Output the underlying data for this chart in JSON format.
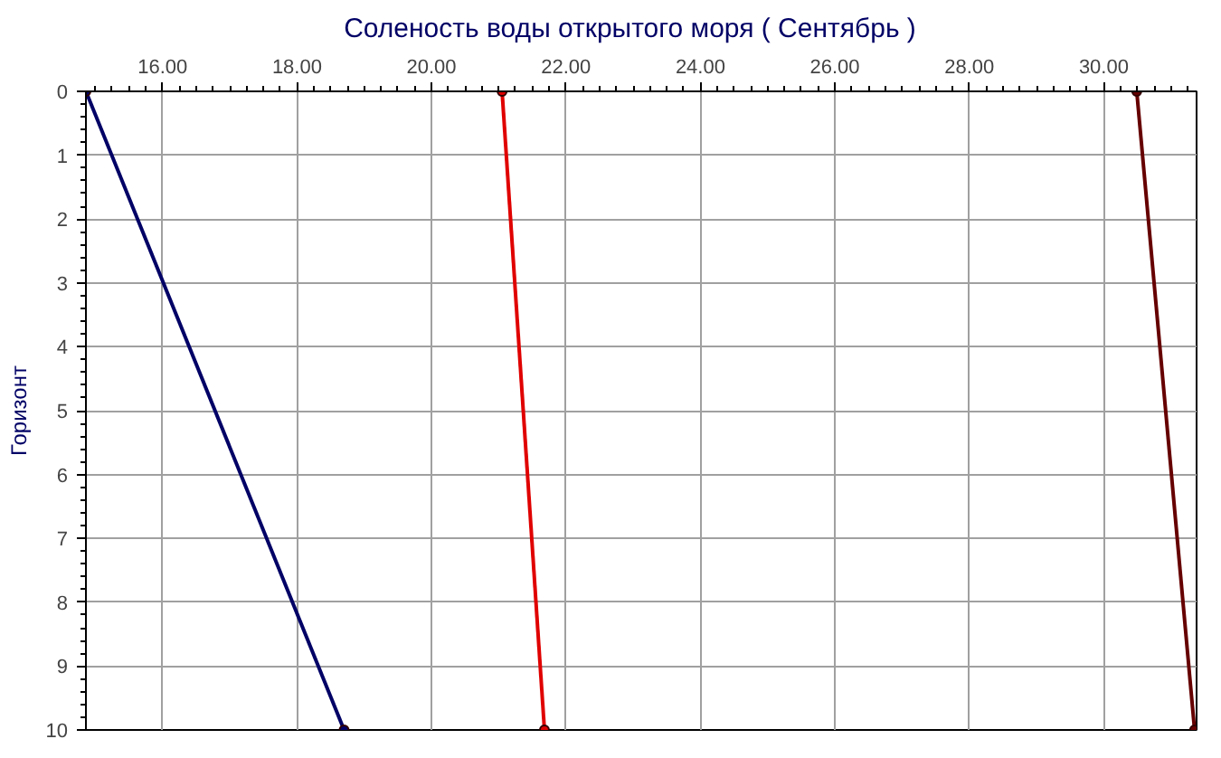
{
  "chart_data": {
    "type": "line",
    "title": "Соленость воды открытого моря    ( Сентябрь )",
    "ylabel": "Горизонт",
    "xlim": [
      14.86,
      31.38
    ],
    "xticks": [
      {
        "value": 16,
        "label": "16.00"
      },
      {
        "value": 18,
        "label": "18.00"
      },
      {
        "value": 20,
        "label": "20.00"
      },
      {
        "value": 22,
        "label": "22.00"
      },
      {
        "value": 24,
        "label": "24.00"
      },
      {
        "value": 26,
        "label": "26.00"
      },
      {
        "value": 28,
        "label": "28.00"
      },
      {
        "value": 30,
        "label": "30.00"
      }
    ],
    "ylim": [
      10,
      0
    ],
    "yticks": [
      0,
      1,
      2,
      3,
      4,
      5,
      6,
      7,
      8,
      9,
      10
    ],
    "grid": true,
    "marker": "circle",
    "line_style": "solid",
    "series": [
      {
        "color": "#000066",
        "x": [
          14.86,
          18.7
        ],
        "values": [
          0,
          10
        ]
      },
      {
        "color": "#e00000",
        "x": [
          21.05,
          21.68
        ],
        "values": [
          0,
          10
        ]
      },
      {
        "color": "#660000",
        "x": [
          30.49,
          31.35
        ],
        "values": [
          0,
          10
        ]
      }
    ]
  }
}
